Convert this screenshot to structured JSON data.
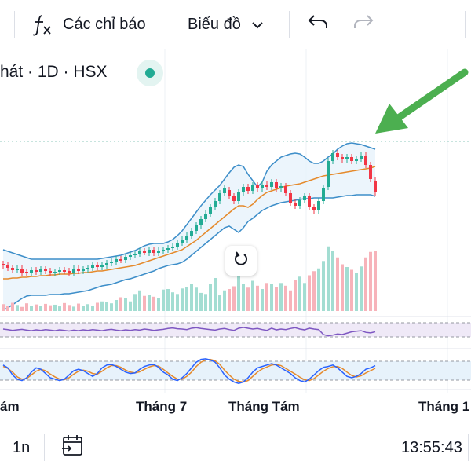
{
  "toolbar": {
    "indicators_label": "Các chỉ báo",
    "indicators_icon": "fx-icon",
    "chart_type_label": "Biểu đồ",
    "chart_type_icon": "chevron-down-icon",
    "undo_icon": "undo-icon",
    "redo_icon": "redo-icon"
  },
  "chart_header": {
    "symbol_text": "hát · 1D · HSX",
    "status_icon": "market-status-dot-icon",
    "status_color": "#22ab94"
  },
  "chart": {
    "reset_icon": "reset-zoom-icon",
    "annotation_icon": "green-arrow-icon",
    "annotation_color": "#4caf50",
    "up_color": "#22ab94",
    "down_color": "#f23645",
    "x_labels": [
      "ám",
      "Tháng 7",
      "Tháng Tám",
      "Tháng 1"
    ]
  },
  "chart_data": {
    "type": "candlestick",
    "x": [
      1,
      2,
      3,
      4,
      5,
      6,
      7,
      8,
      9,
      10,
      11,
      12,
      13,
      14,
      15,
      16,
      17,
      18,
      19,
      20,
      21,
      22,
      23,
      24,
      25,
      26,
      27,
      28,
      29,
      30,
      31,
      32,
      33,
      34,
      35,
      36,
      37,
      38,
      39,
      40,
      41,
      42,
      43,
      44,
      45,
      46,
      47,
      48,
      49,
      50,
      51,
      52,
      53,
      54,
      55,
      56,
      57,
      58,
      59,
      60,
      61,
      62,
      63,
      64,
      65,
      66,
      67,
      68,
      69,
      70,
      71,
      72,
      73,
      74,
      75,
      76,
      77,
      78,
      79,
      80
    ],
    "close": [
      338,
      341,
      344,
      342,
      347,
      348,
      344,
      346,
      343,
      345,
      348,
      346,
      344,
      345,
      347,
      342,
      345,
      343,
      341,
      337,
      340,
      338,
      335,
      333,
      330,
      331,
      327,
      325,
      323,
      320,
      321,
      318,
      322,
      319,
      318,
      316,
      314,
      309,
      305,
      300,
      294,
      287,
      279,
      272,
      264,
      256,
      246,
      240,
      250,
      256,
      245,
      238,
      243,
      236,
      240,
      235,
      238,
      232,
      240,
      237,
      246,
      258,
      262,
      255,
      250,
      264,
      268,
      256,
      240,
      205,
      195,
      200,
      203,
      200,
      205,
      202,
      198,
      210,
      228,
      245
    ],
    "open": [
      336,
      338,
      341,
      344,
      342,
      346,
      348,
      344,
      346,
      343,
      345,
      348,
      346,
      344,
      345,
      347,
      342,
      345,
      343,
      341,
      337,
      340,
      338,
      335,
      333,
      330,
      331,
      327,
      325,
      323,
      320,
      322,
      318,
      322,
      319,
      318,
      316,
      314,
      309,
      305,
      300,
      294,
      287,
      279,
      272,
      264,
      256,
      246,
      242,
      250,
      256,
      245,
      238,
      243,
      236,
      240,
      235,
      238,
      232,
      240,
      237,
      246,
      258,
      262,
      255,
      250,
      264,
      268,
      256,
      238,
      205,
      195,
      200,
      203,
      200,
      205,
      202,
      198,
      210,
      230
    ],
    "bollinger_upper": [
      318,
      320,
      322,
      324,
      326,
      328,
      330,
      330,
      330,
      330,
      330,
      330,
      330,
      330,
      330,
      330,
      330,
      330,
      330,
      330,
      330,
      329,
      328,
      327,
      326,
      325,
      323,
      321,
      319,
      316,
      313,
      311,
      310,
      310,
      310,
      308,
      305,
      300,
      294,
      286,
      278,
      270,
      262,
      255,
      248,
      242,
      236,
      228,
      220,
      213,
      210,
      212,
      222,
      230,
      238,
      232,
      218,
      210,
      205,
      200,
      198,
      196,
      195,
      196,
      200,
      205,
      208,
      208,
      205,
      200,
      196,
      190,
      186,
      183,
      182,
      183,
      184,
      186,
      188,
      190
    ],
    "bollinger_middle": [
      355,
      355,
      354,
      354,
      353,
      353,
      352,
      352,
      351,
      351,
      350,
      350,
      349,
      349,
      349,
      348,
      348,
      347,
      347,
      346,
      345,
      345,
      344,
      343,
      342,
      341,
      340,
      339,
      338,
      336,
      334,
      332,
      330,
      328,
      326,
      324,
      322,
      320,
      318,
      314,
      310,
      306,
      301,
      296,
      291,
      286,
      281,
      276,
      271,
      266,
      262,
      262,
      264,
      260,
      254,
      249,
      245,
      243,
      241,
      239,
      237,
      236,
      235,
      234,
      232,
      230,
      228,
      226,
      224,
      223,
      222,
      221,
      220,
      219,
      218,
      217,
      216,
      215,
      214,
      212
    ],
    "bollinger_lower": [
      395,
      392,
      388,
      384,
      380,
      377,
      376,
      376,
      376,
      376,
      375,
      375,
      375,
      374,
      374,
      373,
      372,
      371,
      370,
      368,
      366,
      364,
      363,
      362,
      360,
      358,
      356,
      355,
      353,
      351,
      349,
      347,
      345,
      342,
      340,
      338,
      337,
      336,
      334,
      330,
      325,
      320,
      315,
      310,
      305,
      300,
      295,
      290,
      288,
      292,
      296,
      290,
      282,
      278,
      273,
      268,
      265,
      262,
      260,
      258,
      257,
      256,
      255,
      254,
      253,
      253,
      252,
      252,
      252,
      252,
      252,
      251,
      250,
      249,
      249,
      248,
      248,
      248,
      248,
      250
    ],
    "volume": [
      25,
      18,
      30,
      22,
      15,
      28,
      20,
      24,
      19,
      26,
      21,
      23,
      17,
      29,
      22,
      16,
      27,
      20,
      25,
      18,
      30,
      35,
      33,
      28,
      40,
      50,
      47,
      35,
      62,
      75,
      55,
      60,
      52,
      47,
      78,
      80,
      68,
      62,
      82,
      86,
      100,
      85,
      66,
      62,
      100,
      120,
      57,
      75,
      80,
      90,
      130,
      100,
      85,
      110,
      92,
      80,
      102,
      100,
      88,
      102,
      92,
      75,
      112,
      125,
      102,
      130,
      145,
      155,
      182,
      235,
      220,
      195,
      170,
      160,
      150,
      140,
      162,
      195,
      215,
      220
    ],
    "rsi": [
      60,
      58,
      55,
      57,
      59,
      56,
      54,
      57,
      55,
      58,
      56,
      54,
      57,
      55,
      53,
      56,
      54,
      57,
      55,
      58,
      56,
      54,
      57,
      59,
      56,
      54,
      57,
      55,
      58,
      56,
      60,
      58,
      55,
      57,
      59,
      62,
      64,
      61,
      60,
      58,
      63,
      65,
      62,
      60,
      58,
      56,
      60,
      62,
      58,
      55,
      63,
      66,
      63,
      60,
      62,
      58,
      55,
      63,
      57,
      60,
      58,
      62,
      65,
      60,
      57,
      63,
      60,
      58,
      40,
      35,
      38,
      42,
      40,
      45,
      50,
      52,
      54,
      48,
      46,
      50
    ],
    "stoch_k": [
      70,
      60,
      35,
      20,
      15,
      25,
      45,
      60,
      55,
      40,
      25,
      20,
      15,
      20,
      35,
      50,
      55,
      50,
      40,
      30,
      40,
      60,
      70,
      72,
      65,
      55,
      45,
      40,
      42,
      55,
      65,
      70,
      72,
      62,
      45,
      35,
      20,
      15,
      25,
      40,
      60,
      80,
      90,
      92,
      88,
      80,
      60,
      35,
      20,
      10,
      5,
      10,
      25,
      45,
      60,
      65,
      70,
      75,
      70,
      60,
      50,
      40,
      25,
      15,
      10,
      20,
      35,
      50,
      62,
      65,
      70,
      60,
      45,
      30,
      25,
      30,
      40,
      55,
      60,
      68
    ],
    "stoch_d": [
      65,
      58,
      45,
      28,
      20,
      22,
      35,
      48,
      55,
      50,
      38,
      28,
      20,
      18,
      25,
      38,
      48,
      52,
      48,
      40,
      38,
      48,
      60,
      68,
      68,
      62,
      52,
      45,
      42,
      46,
      55,
      63,
      68,
      66,
      55,
      42,
      30,
      20,
      20,
      30,
      45,
      65,
      80,
      88,
      90,
      85,
      72,
      52,
      35,
      20,
      12,
      10,
      15,
      30,
      45,
      56,
      63,
      70,
      72,
      68,
      58,
      48,
      38,
      27,
      18,
      15,
      22,
      35,
      48,
      58,
      64,
      65,
      58,
      45,
      33,
      28,
      32,
      42,
      50,
      58
    ]
  },
  "footer": {
    "interval_label": "1n",
    "date_range_icon": "calendar-goto-icon",
    "clock_time": "13:55:43"
  }
}
